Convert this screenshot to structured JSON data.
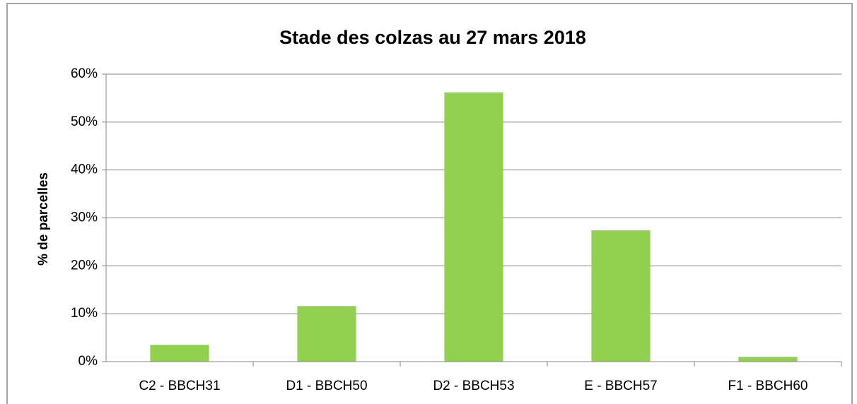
{
  "chart_data": {
    "type": "bar",
    "title": "Stade des colzas au 27 mars 2018",
    "y_label": "% de parcelles",
    "categories": [
      "C2 - BBCH31",
      "D1 - BBCH50",
      "D2 - BBCH53",
      "E - BBCH57",
      "F1 - BBCH60"
    ],
    "values": [
      3.5,
      11.6,
      56.2,
      27.4,
      1.0
    ],
    "color": "#92d050",
    "ylim": [
      0,
      60
    ],
    "yticks": [
      {
        "value": 0,
        "label": "0%"
      },
      {
        "value": 10,
        "label": "10%"
      },
      {
        "value": 20,
        "label": "20%"
      },
      {
        "value": 30,
        "label": "30%"
      },
      {
        "value": 40,
        "label": "40%"
      },
      {
        "value": 50,
        "label": "50%"
      },
      {
        "value": 60,
        "label": "60%"
      }
    ],
    "grid": true
  }
}
